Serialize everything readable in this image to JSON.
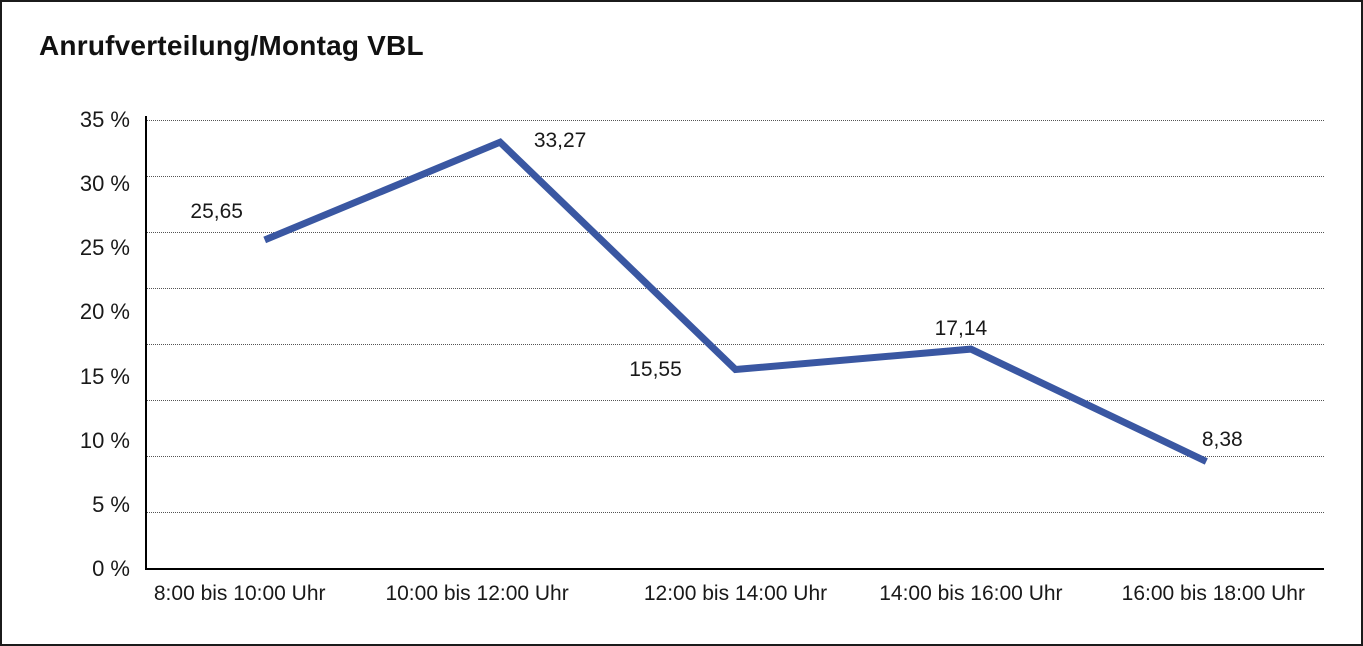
{
  "title": "Anrufverteilung/Montag VBL",
  "frame": {
    "background": "#ffffff",
    "border_color": "#1b1b1b"
  },
  "chart_data": {
    "type": "line",
    "title": "Anrufverteilung/Montag VBL",
    "categories": [
      "8:00 bis 10:00 Uhr",
      "10:00 bis 12:00 Uhr",
      "12:00 bis 14:00 Uhr",
      "14:00 bis 16:00 Uhr",
      "16:00 bis 18:00 Uhr"
    ],
    "values": [
      25.65,
      33.27,
      15.55,
      17.14,
      8.38
    ],
    "point_labels": [
      "25,65",
      "33,27",
      "15,55",
      "17,14",
      "8,38"
    ],
    "y_tick_labels": [
      "35 %",
      "30 %",
      "25 %",
      "20 %",
      "15 %",
      "10 %",
      "5 %",
      "0 %"
    ],
    "ylim": [
      0,
      35
    ],
    "xlabel": "",
    "ylabel": "",
    "legend": "none",
    "grid": "horizontal-dotted",
    "gridline_count": 8,
    "line_color": "#3A57A2",
    "line_width": 7,
    "axis_color": "#000000",
    "text_color": "#191919"
  }
}
